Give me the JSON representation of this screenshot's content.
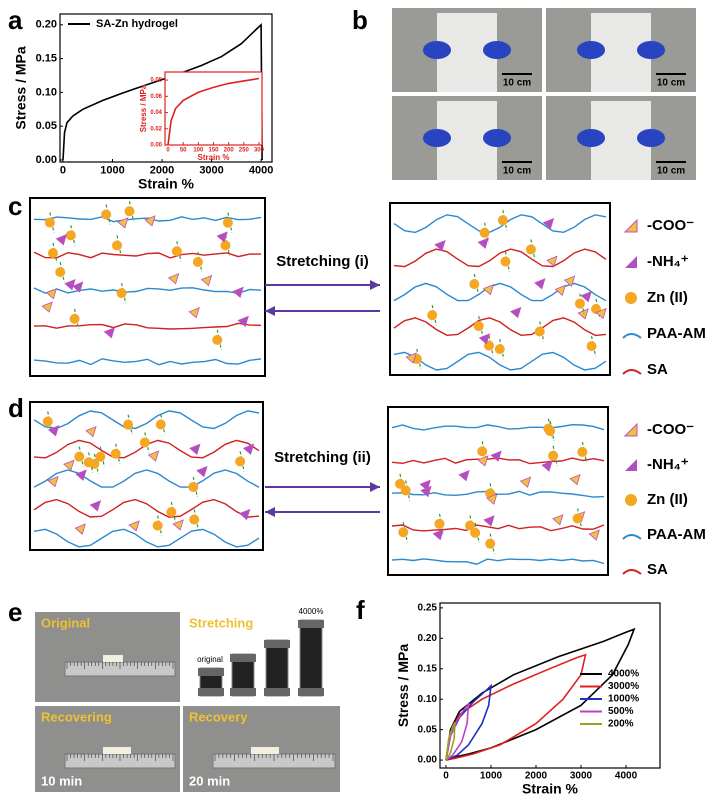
{
  "panel_labels": [
    "a",
    "b",
    "c",
    "d",
    "e",
    "f"
  ],
  "chart_data": [
    {
      "type": "line",
      "xlabel": "Strain %",
      "ylabel": "Stress / MPa",
      "xlim": [
        -60,
        4220
      ],
      "ylim": [
        -0.003,
        0.216
      ],
      "xticks": [
        0,
        1000,
        2000,
        3000,
        4000
      ],
      "yticks": [
        {
          "value": 0,
          "label": "0.00"
        },
        {
          "value": 0.05,
          "label": "0.05"
        },
        {
          "value": 0.1,
          "label": "0.10"
        },
        {
          "value": 0.15,
          "label": "0.15"
        },
        {
          "value": 0.2,
          "label": "0.20"
        }
      ],
      "legend": "upper left",
      "series": [
        {
          "name": "SA-Zn hydrogel",
          "color": "#000000",
          "x": [
            0,
            30,
            80,
            200,
            400,
            800,
            1200,
            1600,
            2000,
            2400,
            2800,
            3200,
            3600,
            3900,
            4000,
            4020
          ],
          "values": [
            0,
            0.04,
            0.055,
            0.065,
            0.075,
            0.088,
            0.099,
            0.109,
            0.119,
            0.129,
            0.14,
            0.153,
            0.172,
            0.193,
            0.2,
            0
          ]
        }
      ]
    },
    {
      "type": "line",
      "xlabel": "Strain %",
      "ylabel": "Stress / MPa",
      "xlim": [
        -10,
        310
      ],
      "ylim": [
        0,
        0.09
      ],
      "xticks": [
        0,
        50,
        100,
        150,
        200,
        250,
        300
      ],
      "yticks": [
        {
          "value": 0,
          "label": "0.00"
        },
        {
          "value": 0.02,
          "label": "0.02"
        },
        {
          "value": 0.04,
          "label": "0.04"
        },
        {
          "value": 0.06,
          "label": "0.06"
        },
        {
          "value": 0.08,
          "label": "0.08"
        }
      ],
      "series": [
        {
          "color": "#e02020",
          "x": [
            0,
            10,
            25,
            50,
            100,
            150,
            200,
            250,
            300
          ],
          "values": [
            0,
            0.03,
            0.045,
            0.055,
            0.065,
            0.071,
            0.076,
            0.079,
            0.082
          ]
        }
      ]
    },
    {
      "type": "line",
      "xlabel": "Strain %",
      "ylabel": "Stress / MPa",
      "xlim": [
        -133,
        4755
      ],
      "ylim": [
        -0.013,
        0.258
      ],
      "xticks": [
        0,
        1000,
        2000,
        3000,
        4000
      ],
      "yticks": [
        {
          "value": 0,
          "label": "0.00"
        },
        {
          "value": 0.05,
          "label": "0.05"
        },
        {
          "value": 0.1,
          "label": "0.10"
        },
        {
          "value": 0.15,
          "label": "0.15"
        },
        {
          "value": 0.2,
          "label": "0.20"
        },
        {
          "value": 0.25,
          "label": "0.25"
        }
      ],
      "legend": "lower right",
      "series": [
        {
          "name": "4000%",
          "color": "#000000",
          "x": [
            0,
            100,
            300,
            800,
            1500,
            2500,
            3500,
            4000,
            4180,
            4050,
            3700,
            3000,
            2000,
            1000,
            500,
            200,
            0
          ],
          "values": [
            0,
            0.05,
            0.08,
            0.11,
            0.14,
            0.17,
            0.195,
            0.21,
            0.215,
            0.19,
            0.14,
            0.09,
            0.05,
            0.02,
            0.01,
            0.005,
            0
          ]
        },
        {
          "name": "3000%",
          "color": "#e02020",
          "x": [
            0,
            100,
            300,
            800,
            1500,
            2300,
            2900,
            3100,
            3000,
            2600,
            2000,
            1200,
            600,
            200,
            0
          ],
          "values": [
            0,
            0.045,
            0.075,
            0.1,
            0.125,
            0.15,
            0.168,
            0.173,
            0.14,
            0.1,
            0.06,
            0.025,
            0.01,
            0.003,
            0
          ]
        },
        {
          "name": "1000%",
          "color": "#2030c0",
          "x": [
            0,
            100,
            300,
            600,
            900,
            1000,
            950,
            800,
            500,
            250,
            0
          ],
          "values": [
            0,
            0.04,
            0.07,
            0.095,
            0.115,
            0.122,
            0.09,
            0.06,
            0.025,
            0.008,
            0
          ]
        },
        {
          "name": "500%",
          "color": "#c040c0",
          "x": [
            0,
            100,
            250,
            420,
            500,
            470,
            350,
            150,
            0
          ],
          "values": [
            0,
            0.04,
            0.065,
            0.085,
            0.092,
            0.06,
            0.03,
            0.008,
            0
          ]
        },
        {
          "name": "200%",
          "color": "#a0a020",
          "x": [
            0,
            60,
            150,
            200,
            180,
            100,
            0
          ],
          "values": [
            0,
            0.035,
            0.055,
            0.062,
            0.035,
            0.012,
            0
          ]
        }
      ]
    }
  ],
  "photos_b": {
    "scale_labels": [
      "10 cm",
      "10 cm",
      "10 cm",
      "10 cm"
    ]
  },
  "diagram_c": {
    "arrow_label": "Stretching (i)",
    "legend": [
      "-COO⁻",
      "-NH₄⁺",
      "Zn (II)",
      "PAA-AM",
      "SA"
    ]
  },
  "diagram_d": {
    "arrow_label": "Stretching (ii)",
    "legend": [
      "-COO⁻",
      "-NH₄⁺",
      "Zn (II)",
      "PAA-AM",
      "SA"
    ]
  },
  "photos_e": {
    "labels": [
      "Original",
      "Stretching",
      "Recovering",
      "Recovery"
    ],
    "times": [
      "10 min",
      "20 min"
    ],
    "sample_labels": [
      "original",
      "4000%"
    ]
  }
}
